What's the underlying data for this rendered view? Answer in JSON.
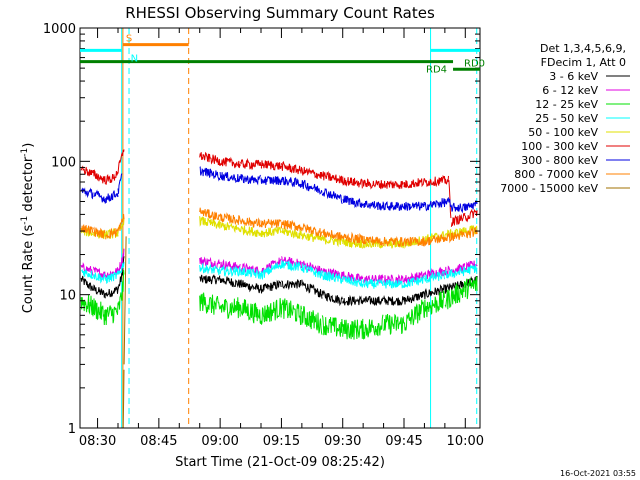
{
  "chart_data": {
    "type": "line",
    "title": "RHESSI Observing Summary Count Rates",
    "xlabel": "Start Time (21-Oct-09 08:25:42)",
    "ylabel": "Count Rate (s⁻¹ detector⁻¹)",
    "ylabel_parts": [
      "Count Rate (s",
      "-1",
      " detector",
      "-1",
      ")"
    ],
    "yscale": "log",
    "ylim": [
      1,
      1000
    ],
    "y_ticks": [
      {
        "value": 1,
        "label": "1"
      },
      {
        "value": 10,
        "label": "10"
      },
      {
        "value": 100,
        "label": "100"
      },
      {
        "value": 1000,
        "label": "1000"
      }
    ],
    "xlim_minutes": [
      25.7,
      68.6
    ],
    "x_ticks": [
      {
        "value": 30,
        "label": "08:30"
      },
      {
        "value": 45,
        "label": "08:45"
      },
      {
        "value": 60,
        "label": "09:00"
      },
      {
        "value": 75,
        "label": "09:15"
      },
      {
        "value": 90,
        "label": "09:30"
      },
      {
        "value": 105,
        "label": "09:45"
      },
      {
        "value": 120,
        "label": "10:00"
      }
    ],
    "x_units_note": "minutes after 08:00",
    "legend_header": [
      "Det 1,3,4,5,6,9,",
      "FDecim 1, Att 0"
    ],
    "legend_placement": "right",
    "series": [
      {
        "name": "3 - 6 keV",
        "color": "#000000",
        "points": [
          [
            26,
            13
          ],
          [
            29,
            11
          ],
          [
            32,
            10
          ],
          [
            35,
            11
          ],
          [
            36,
            14
          ],
          [
            36.5,
            20
          ],
          [
            55,
            13
          ],
          [
            60,
            13
          ],
          [
            65,
            12
          ],
          [
            70,
            11
          ],
          [
            75,
            12
          ],
          [
            80,
            12
          ],
          [
            85,
            10
          ],
          [
            90,
            9
          ],
          [
            95,
            9
          ],
          [
            100,
            9
          ],
          [
            105,
            9
          ],
          [
            110,
            10
          ],
          [
            115,
            11
          ],
          [
            120,
            12
          ],
          [
            123,
            13
          ]
        ]
      },
      {
        "name": "6 - 12 keV",
        "color": "#e000e0",
        "points": [
          [
            26,
            16
          ],
          [
            29,
            15
          ],
          [
            32,
            14
          ],
          [
            35,
            15
          ],
          [
            36,
            18
          ],
          [
            36.5,
            22
          ],
          [
            55,
            18
          ],
          [
            60,
            17
          ],
          [
            65,
            16
          ],
          [
            70,
            15
          ],
          [
            75,
            18
          ],
          [
            80,
            17
          ],
          [
            85,
            15
          ],
          [
            90,
            14
          ],
          [
            95,
            13
          ],
          [
            100,
            13
          ],
          [
            105,
            13
          ],
          [
            110,
            14
          ],
          [
            115,
            15
          ],
          [
            120,
            16
          ],
          [
            123,
            17
          ]
        ]
      },
      {
        "name": "12 - 25 keV",
        "color": "#00e000",
        "points": [
          [
            26,
            9
          ],
          [
            29,
            8
          ],
          [
            32,
            7
          ],
          [
            35,
            7.5
          ],
          [
            36,
            10
          ],
          [
            36.5,
            14
          ],
          [
            55,
            9
          ],
          [
            60,
            8
          ],
          [
            65,
            8
          ],
          [
            70,
            7
          ],
          [
            75,
            8
          ],
          [
            80,
            7
          ],
          [
            85,
            6
          ],
          [
            90,
            5.5
          ],
          [
            95,
            5.5
          ],
          [
            100,
            6
          ],
          [
            105,
            6
          ],
          [
            110,
            8
          ],
          [
            115,
            9
          ],
          [
            120,
            11
          ],
          [
            123,
            12
          ]
        ]
      },
      {
        "name": "25 - 50 keV",
        "color": "#00ffff",
        "points": [
          [
            26,
            15
          ],
          [
            29,
            14
          ],
          [
            32,
            13
          ],
          [
            35,
            14
          ],
          [
            36,
            16
          ],
          [
            36.5,
            18
          ],
          [
            55,
            16
          ],
          [
            60,
            15
          ],
          [
            65,
            15
          ],
          [
            70,
            14
          ],
          [
            75,
            17
          ],
          [
            80,
            16
          ],
          [
            85,
            14
          ],
          [
            90,
            13
          ],
          [
            95,
            12
          ],
          [
            100,
            12
          ],
          [
            105,
            12
          ],
          [
            110,
            13
          ],
          [
            115,
            14
          ],
          [
            120,
            15
          ],
          [
            123,
            16
          ]
        ]
      },
      {
        "name": "50 - 100 keV",
        "color": "#e0e000",
        "points": [
          [
            26,
            30
          ],
          [
            29,
            29
          ],
          [
            32,
            28
          ],
          [
            35,
            29
          ],
          [
            36,
            32
          ],
          [
            36.5,
            38
          ],
          [
            55,
            36
          ],
          [
            60,
            33
          ],
          [
            65,
            31
          ],
          [
            70,
            29
          ],
          [
            75,
            30
          ],
          [
            80,
            28
          ],
          [
            85,
            26
          ],
          [
            90,
            25
          ],
          [
            95,
            24
          ],
          [
            100,
            24
          ],
          [
            105,
            24
          ],
          [
            110,
            26
          ],
          [
            115,
            28
          ],
          [
            120,
            30
          ],
          [
            123,
            31
          ]
        ]
      },
      {
        "name": "100 - 300 keV",
        "color": "#e00000",
        "points": [
          [
            26,
            88
          ],
          [
            29,
            80
          ],
          [
            32,
            72
          ],
          [
            34,
            75
          ],
          [
            35,
            85
          ],
          [
            36,
            110
          ],
          [
            36.5,
            130
          ],
          [
            55,
            110
          ],
          [
            60,
            100
          ],
          [
            65,
            95
          ],
          [
            70,
            95
          ],
          [
            75,
            92
          ],
          [
            80,
            85
          ],
          [
            85,
            78
          ],
          [
            90,
            72
          ],
          [
            95,
            68
          ],
          [
            100,
            67
          ],
          [
            105,
            67
          ],
          [
            110,
            70
          ],
          [
            116,
            72
          ],
          [
            116.5,
            35
          ],
          [
            120,
            38
          ],
          [
            123,
            42
          ]
        ]
      },
      {
        "name": "300 - 800 keV",
        "color": "#0000e0",
        "points": [
          [
            26,
            60
          ],
          [
            29,
            57
          ],
          [
            32,
            52
          ],
          [
            35,
            58
          ],
          [
            36,
            80
          ],
          [
            55,
            85
          ],
          [
            60,
            78
          ],
          [
            65,
            74
          ],
          [
            70,
            72
          ],
          [
            75,
            72
          ],
          [
            80,
            68
          ],
          [
            85,
            60
          ],
          [
            90,
            52
          ],
          [
            95,
            48
          ],
          [
            100,
            46
          ],
          [
            105,
            46
          ],
          [
            110,
            46
          ],
          [
            116,
            50
          ],
          [
            116.5,
            45
          ],
          [
            120,
            45
          ],
          [
            123,
            48
          ]
        ]
      },
      {
        "name": "800 - 7000 keV",
        "color": "#ff8000",
        "points": [
          [
            26,
            32
          ],
          [
            29,
            30
          ],
          [
            32,
            28
          ],
          [
            35,
            30
          ],
          [
            36,
            35
          ],
          [
            36.5,
            40
          ],
          [
            55,
            42
          ],
          [
            60,
            38
          ],
          [
            65,
            36
          ],
          [
            70,
            34
          ],
          [
            75,
            34
          ],
          [
            80,
            32
          ],
          [
            85,
            29
          ],
          [
            90,
            27
          ],
          [
            95,
            26
          ],
          [
            100,
            25
          ],
          [
            105,
            25
          ],
          [
            110,
            25
          ],
          [
            116,
            27
          ],
          [
            120,
            28
          ],
          [
            123,
            30
          ]
        ]
      },
      {
        "name": "7000 - 15000 keV",
        "color": "#a07000",
        "points": [
          [
            36,
            0.3
          ],
          [
            36.5,
            3
          ],
          [
            37,
            30
          ]
        ]
      }
    ],
    "vertical_lines": [
      {
        "x": 35.9,
        "color": "#00ffff",
        "style": "solid"
      },
      {
        "x": 37.7,
        "color": "#00ffff",
        "style": "dashed"
      },
      {
        "x": 36.2,
        "color": "#ff8000",
        "style": "solid"
      },
      {
        "x": 52.3,
        "color": "#ff8000",
        "style": "dashed"
      },
      {
        "x": 111.5,
        "color": "#00ffff",
        "style": "solid"
      },
      {
        "x": 122.8,
        "color": "#00ffff",
        "style": "dashed"
      }
    ],
    "flags": [
      {
        "label": "S",
        "color": "#ff8000",
        "x_start": 36.2,
        "x_end": 52.3,
        "level": 750
      },
      {
        "label": "N",
        "color": "#00ffff",
        "x_start": 25.7,
        "x_end": 35.9,
        "level": 680
      },
      {
        "label": "N",
        "color": "#00ffff",
        "x_start": 111.5,
        "x_end": 128,
        "level": 680
      },
      {
        "label": "RD4",
        "color": "#008000",
        "x_start": 25.7,
        "x_end": 117,
        "level": 560
      },
      {
        "label": "RD0",
        "color": "#008000",
        "x_start": 117,
        "x_end": 128,
        "level": 490
      }
    ],
    "footer_timestamp": "16-Oct-2021 03:55"
  }
}
